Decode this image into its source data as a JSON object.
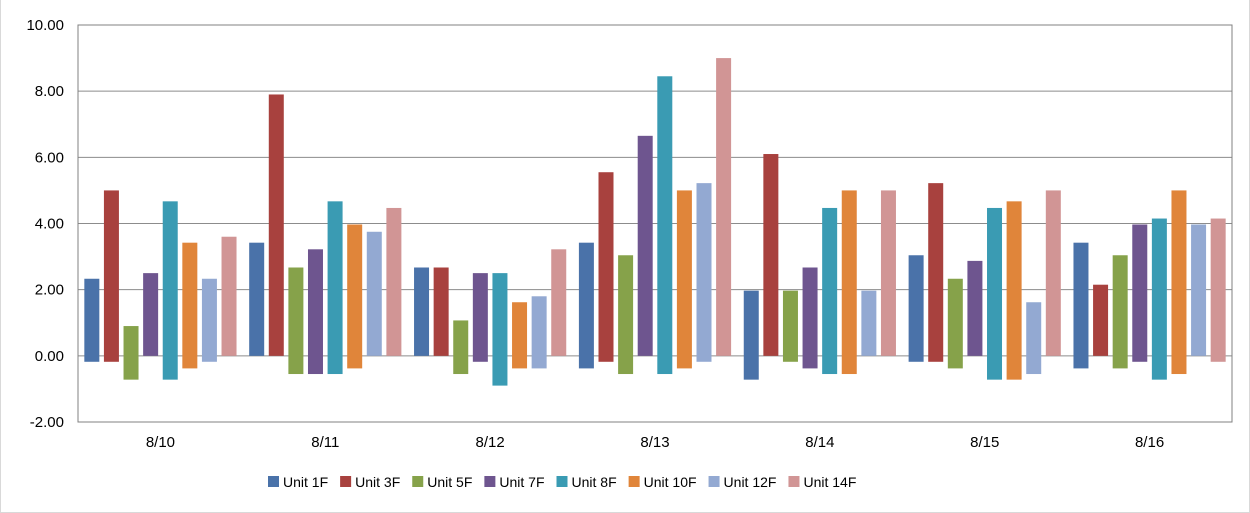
{
  "chart_data": {
    "type": "bar",
    "title": "",
    "xlabel": "",
    "ylabel": "",
    "categories": [
      "8/10",
      "8/11",
      "8/12",
      "8/13",
      "8/14",
      "8/15",
      "8/16"
    ],
    "ylim": [
      -2,
      10
    ],
    "yticks": [
      "-2.00",
      "0.00",
      "2.00",
      "4.00",
      "6.00",
      "8.00",
      "10.00"
    ],
    "grid": true,
    "legend_position": "bottom",
    "series": [
      {
        "name": "Unit 1F",
        "color": "#4a72a9",
        "values": [
          2.33,
          3.42,
          2.67,
          3.42,
          1.97,
          3.04,
          3.42
        ],
        "mins": [
          -0.18,
          0.0,
          0.0,
          -0.38,
          -0.72,
          -0.18,
          -0.38
        ]
      },
      {
        "name": "Unit 3F",
        "color": "#a8413e",
        "values": [
          5.0,
          7.9,
          2.67,
          5.55,
          6.1,
          5.22,
          2.15
        ],
        "mins": [
          -0.18,
          0.0,
          0.0,
          -0.18,
          0.0,
          -0.18,
          0.0
        ]
      },
      {
        "name": "Unit 5F",
        "color": "#86a24a",
        "values": [
          0.9,
          2.67,
          1.07,
          3.04,
          1.97,
          2.33,
          3.04
        ],
        "mins": [
          -0.72,
          -0.55,
          -0.55,
          -0.55,
          -0.18,
          -0.38,
          -0.38
        ]
      },
      {
        "name": "Unit 7F",
        "color": "#6e558f",
        "values": [
          2.5,
          3.22,
          2.5,
          6.65,
          2.67,
          2.87,
          3.97
        ],
        "mins": [
          0.0,
          -0.55,
          -0.18,
          0.0,
          -0.38,
          0.0,
          -0.18
        ]
      },
      {
        "name": "Unit 8F",
        "color": "#3a9bb3",
        "values": [
          4.67,
          4.67,
          2.5,
          8.45,
          4.47,
          4.47,
          4.15
        ],
        "mins": [
          -0.72,
          -0.55,
          -0.9,
          -0.55,
          -0.55,
          -0.72,
          -0.72
        ]
      },
      {
        "name": "Unit 10F",
        "color": "#e0853a",
        "values": [
          3.42,
          3.97,
          1.62,
          5.0,
          5.0,
          4.67,
          5.0
        ],
        "mins": [
          -0.38,
          -0.38,
          -0.38,
          -0.38,
          -0.55,
          -0.72,
          -0.55
        ]
      },
      {
        "name": "Unit 12F",
        "color": "#93a9d2",
        "values": [
          2.33,
          3.75,
          1.8,
          5.22,
          1.97,
          1.62,
          3.97
        ],
        "mins": [
          -0.18,
          0.0,
          -0.38,
          -0.18,
          0.0,
          -0.55,
          0.0
        ]
      },
      {
        "name": "Unit 14F",
        "color": "#d19595",
        "values": [
          3.6,
          4.47,
          3.22,
          9.0,
          5.0,
          5.0,
          4.15
        ],
        "mins": [
          0.0,
          0.0,
          0.0,
          0.0,
          0.0,
          0.0,
          -0.18
        ]
      }
    ]
  }
}
